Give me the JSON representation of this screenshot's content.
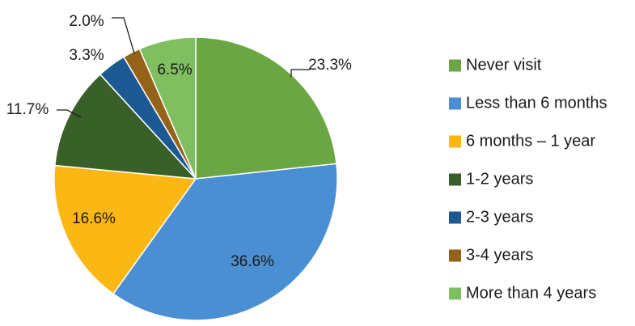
{
  "chart_data": {
    "type": "pie",
    "title": "",
    "legend_position": "right",
    "start_angle_deg": 0,
    "direction": "clockwise",
    "labels": [
      "Never visit",
      "Less than 6 months",
      "6 months – 1 year",
      "1-2 years",
      "2-3 years",
      "3-4 years",
      "More than 4 years"
    ],
    "values": [
      23.3,
      36.6,
      16.6,
      11.7,
      3.3,
      2.0,
      6.5
    ],
    "value_labels": [
      "23.3%",
      "36.6%",
      "16.6%",
      "11.7%",
      "3.3%",
      "2.0%",
      "6.5%"
    ],
    "colors": [
      "#6aa744",
      "#4a8fd3",
      "#fbb714",
      "#3a6029",
      "#1d5a93",
      "#946218",
      "#80bf5f"
    ]
  }
}
